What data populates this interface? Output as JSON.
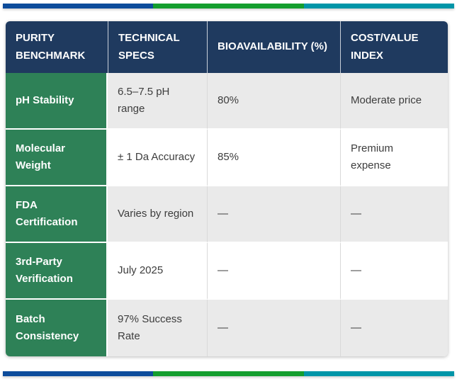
{
  "colors": {
    "accent_blue": "#0d4c9b",
    "accent_green": "#149e2e",
    "accent_teal": "#0095a8",
    "header_navy": "#1f3a5f",
    "row_header_green": "#2e8157",
    "stripe_gray": "#eaeaea",
    "stripe_white": "#ffffff",
    "body_text": "#3d3d3d"
  },
  "table": {
    "columns": [
      "PURITY BENCHMARK",
      "TECHNICAL SPECS",
      "BIOAVAILABILITY (%)",
      "COST/VALUE INDEX"
    ],
    "rows": [
      {
        "benchmark": "pH Stability",
        "specs": "6.5–7.5 pH range",
        "bioavailability": "80%",
        "cost": "Moderate price"
      },
      {
        "benchmark": "Molecular Weight",
        "specs": "± 1 Da Accuracy",
        "bioavailability": "85%",
        "cost": "Premium expense"
      },
      {
        "benchmark": "FDA Certification",
        "specs": "Varies by region",
        "bioavailability": "—",
        "cost": "—"
      },
      {
        "benchmark": "3rd-Party Verification",
        "specs": "July 2025",
        "bioavailability": "—",
        "cost": "—"
      },
      {
        "benchmark": "Batch Consistency",
        "specs": "97% Success Rate",
        "bioavailability": "—",
        "cost": "—"
      }
    ]
  }
}
